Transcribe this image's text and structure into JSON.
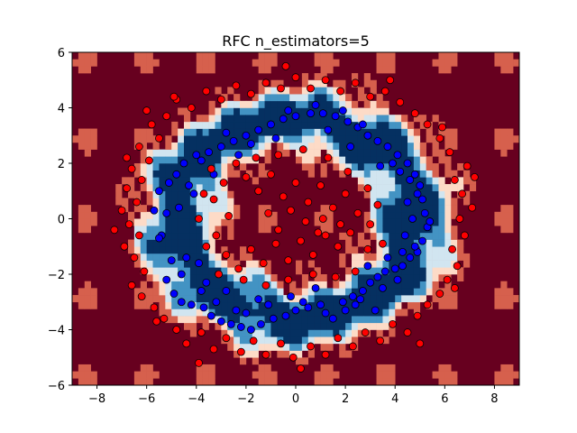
{
  "chart_data": {
    "type": "scatter",
    "title": "RFC n_estimators=5",
    "xlabel": "",
    "ylabel": "",
    "xlim": [
      -9,
      9
    ],
    "ylim": [
      -6,
      6
    ],
    "x_ticks": [
      -8,
      -6,
      -4,
      -2,
      0,
      2,
      4,
      6,
      8
    ],
    "y_ticks": [
      -6,
      -4,
      -2,
      0,
      2,
      4,
      6
    ],
    "grid": false,
    "background": "decision-surface colormap RdBu",
    "colors": {
      "class_red": "#ff0000",
      "class_blue": "#0000ff",
      "dark_red": "#67001f",
      "mid_red": "#d6604d",
      "light_red": "#fddbc7",
      "near_white": "#f7f7f7",
      "light_blue": "#d1e5f0",
      "mid_blue": "#4393c3",
      "dark_blue": "#053061"
    },
    "region_levels": [
      {
        "name": "outer-class",
        "value": 0.0,
        "color": "#67001f"
      },
      {
        "name": "mostly-outer",
        "value": 0.2,
        "color": "#d6604d"
      },
      {
        "name": "mixed-outer",
        "value": 0.4,
        "color": "#fddbc7"
      },
      {
        "name": "mixed-inner",
        "value": 0.6,
        "color": "#d1e5f0"
      },
      {
        "name": "mostly-inner",
        "value": 0.8,
        "color": "#4393c3"
      },
      {
        "name": "inner-class",
        "value": 1.0,
        "color": "#053061"
      }
    ],
    "series": [
      {
        "color": "#0000ff",
        "points": [
          [
            -5.5,
            1.0
          ],
          [
            -5.2,
            0.2
          ],
          [
            -5.4,
            -0.6
          ],
          [
            -5.0,
            -1.5
          ],
          [
            -5.2,
            -2.2
          ],
          [
            -4.9,
            -2.7
          ],
          [
            -4.6,
            -3.0
          ],
          [
            -4.2,
            -3.1
          ],
          [
            -3.7,
            -3.2
          ],
          [
            -3.4,
            -3.5
          ],
          [
            -3.0,
            -3.7
          ],
          [
            -2.6,
            -3.8
          ],
          [
            -2.2,
            -3.9
          ],
          [
            -1.8,
            -4.0
          ],
          [
            -1.4,
            -3.8
          ],
          [
            -0.9,
            -3.6
          ],
          [
            -0.4,
            -3.5
          ],
          [
            0.0,
            -3.3
          ],
          [
            0.5,
            -3.2
          ],
          [
            1.0,
            -3.1
          ],
          [
            1.5,
            -3.6
          ],
          [
            2.0,
            -3.3
          ],
          [
            2.4,
            -3.1
          ],
          [
            2.7,
            -2.6
          ],
          [
            3.0,
            -2.3
          ],
          [
            3.3,
            -2.1
          ],
          [
            3.6,
            -1.9
          ],
          [
            4.0,
            -1.8
          ],
          [
            4.3,
            -1.7
          ],
          [
            4.6,
            -1.4
          ],
          [
            4.9,
            -1.2
          ],
          [
            5.1,
            -0.8
          ],
          [
            5.3,
            -0.3
          ],
          [
            5.2,
            0.2
          ],
          [
            5.1,
            0.7
          ],
          [
            5.0,
            1.2
          ],
          [
            4.8,
            1.6
          ],
          [
            4.5,
            2.0
          ],
          [
            4.1,
            2.3
          ],
          [
            3.7,
            2.6
          ],
          [
            3.3,
            2.8
          ],
          [
            2.9,
            3.0
          ],
          [
            2.5,
            3.3
          ],
          [
            2.1,
            3.5
          ],
          [
            1.6,
            3.7
          ],
          [
            1.1,
            3.8
          ],
          [
            0.6,
            3.8
          ],
          [
            0.0,
            3.7
          ],
          [
            -0.5,
            3.6
          ],
          [
            -1.0,
            3.4
          ],
          [
            -1.5,
            3.2
          ],
          [
            -2.0,
            3.0
          ],
          [
            -2.5,
            2.8
          ],
          [
            -3.0,
            2.6
          ],
          [
            -3.5,
            2.4
          ],
          [
            -4.0,
            2.3
          ],
          [
            -4.5,
            2.0
          ],
          [
            -4.8,
            1.6
          ],
          [
            -5.1,
            1.3
          ],
          [
            -4.6,
            -2.0
          ],
          [
            -3.8,
            -2.6
          ],
          [
            -3.2,
            -3.0
          ],
          [
            -2.0,
            -3.4
          ],
          [
            -1.1,
            -3.1
          ],
          [
            0.3,
            -3.0
          ],
          [
            1.2,
            -3.4
          ],
          [
            2.3,
            -2.8
          ],
          [
            3.5,
            -2.5
          ],
          [
            4.1,
            -2.2
          ],
          [
            4.8,
            -1.0
          ],
          [
            4.7,
            0.0
          ],
          [
            4.9,
            0.9
          ],
          [
            4.2,
            1.7
          ],
          [
            3.9,
            2.0
          ],
          [
            2.7,
            3.4
          ],
          [
            1.9,
            3.9
          ],
          [
            0.8,
            4.1
          ],
          [
            -0.3,
            3.9
          ],
          [
            -1.8,
            2.7
          ],
          [
            -2.8,
            3.1
          ],
          [
            -3.8,
            2.1
          ],
          [
            -4.3,
            1.2
          ],
          [
            -4.7,
            0.4
          ],
          [
            -5.5,
            -0.7
          ],
          [
            -4.4,
            -1.4
          ],
          [
            -5.7,
            0.3
          ],
          [
            -3.9,
            -1.6
          ],
          [
            -2.4,
            -3.3
          ],
          [
            -1.5,
            -2.9
          ],
          [
            0.8,
            -2.5
          ],
          [
            1.9,
            -3.0
          ],
          [
            2.9,
            -1.7
          ],
          [
            3.7,
            -1.4
          ],
          [
            4.4,
            -0.6
          ],
          [
            4.5,
            0.6
          ],
          [
            3.4,
            1.9
          ],
          [
            2.2,
            2.6
          ],
          [
            1.3,
            3.2
          ],
          [
            -0.8,
            2.9
          ],
          [
            -2.3,
            2.3
          ],
          [
            -3.3,
            1.6
          ],
          [
            -4.1,
            0.9
          ],
          [
            -3.6,
            -2.3
          ],
          [
            -2.8,
            -2.6
          ],
          [
            -0.2,
            -2.8
          ],
          [
            2.6,
            -2.9
          ],
          [
            3.2,
            -3.3
          ],
          [
            4.3,
            -1.2
          ],
          [
            5.4,
            -0.1
          ],
          [
            4.6,
            1.4
          ]
        ]
      },
      {
        "color": "#ff0000",
        "points": [
          [
            -6.0,
            3.9
          ],
          [
            -5.8,
            3.4
          ],
          [
            -5.5,
            2.9
          ],
          [
            -6.3,
            2.6
          ],
          [
            -5.9,
            2.1
          ],
          [
            -6.6,
            1.8
          ],
          [
            -6.2,
            1.4
          ],
          [
            -6.8,
            1.1
          ],
          [
            -6.4,
            0.6
          ],
          [
            -7.0,
            0.3
          ],
          [
            -6.7,
            -0.2
          ],
          [
            -6.3,
            -0.6
          ],
          [
            -6.9,
            -1.0
          ],
          [
            -6.5,
            -1.4
          ],
          [
            -6.1,
            -1.9
          ],
          [
            -6.6,
            -2.4
          ],
          [
            -6.2,
            -2.8
          ],
          [
            -5.7,
            -3.2
          ],
          [
            -5.3,
            -3.6
          ],
          [
            -4.8,
            -4.0
          ],
          [
            -4.4,
            -4.5
          ],
          [
            -3.8,
            -4.1
          ],
          [
            -3.3,
            -4.7
          ],
          [
            -2.8,
            -4.3
          ],
          [
            -2.2,
            -4.8
          ],
          [
            -1.7,
            -4.4
          ],
          [
            -1.2,
            -4.9
          ],
          [
            -0.6,
            -4.5
          ],
          [
            -0.1,
            -5.0
          ],
          [
            0.6,
            -4.6
          ],
          [
            1.2,
            -4.9
          ],
          [
            1.7,
            -4.3
          ],
          [
            2.3,
            -4.6
          ],
          [
            2.8,
            -4.1
          ],
          [
            3.4,
            -4.4
          ],
          [
            3.9,
            -3.8
          ],
          [
            4.5,
            -4.1
          ],
          [
            4.9,
            -3.5
          ],
          [
            5.3,
            -3.1
          ],
          [
            5.8,
            -2.7
          ],
          [
            6.1,
            -2.2
          ],
          [
            6.5,
            -1.7
          ],
          [
            6.3,
            -1.1
          ],
          [
            6.8,
            -0.6
          ],
          [
            6.6,
            0.0
          ],
          [
            7.1,
            0.4
          ],
          [
            6.7,
            0.9
          ],
          [
            6.4,
            1.4
          ],
          [
            6.9,
            1.9
          ],
          [
            6.2,
            2.4
          ],
          [
            5.8,
            2.9
          ],
          [
            5.3,
            3.4
          ],
          [
            4.8,
            3.8
          ],
          [
            4.2,
            4.2
          ],
          [
            3.6,
            4.6
          ],
          [
            3.0,
            4.4
          ],
          [
            2.4,
            4.9
          ],
          [
            1.8,
            4.6
          ],
          [
            1.2,
            5.0
          ],
          [
            0.6,
            4.7
          ],
          [
            0.0,
            5.1
          ],
          [
            -0.6,
            4.7
          ],
          [
            -1.2,
            4.9
          ],
          [
            -1.8,
            4.5
          ],
          [
            -2.4,
            4.8
          ],
          [
            -3.0,
            4.3
          ],
          [
            -3.6,
            4.6
          ],
          [
            -4.2,
            4.0
          ],
          [
            -4.8,
            4.3
          ],
          [
            -5.2,
            3.7
          ],
          [
            -2.0,
            1.5
          ],
          [
            -1.5,
            1.0
          ],
          [
            -1.0,
            1.6
          ],
          [
            -0.5,
            0.8
          ],
          [
            0.0,
            1.3
          ],
          [
            0.5,
            0.6
          ],
          [
            1.0,
            1.2
          ],
          [
            1.5,
            0.4
          ],
          [
            2.0,
            0.9
          ],
          [
            2.5,
            0.2
          ],
          [
            2.2,
            -0.5
          ],
          [
            1.7,
            -1.0
          ],
          [
            1.2,
            -0.6
          ],
          [
            0.7,
            -1.3
          ],
          [
            0.2,
            -0.8
          ],
          [
            -0.3,
            -1.5
          ],
          [
            -0.8,
            -0.9
          ],
          [
            -1.3,
            -1.6
          ],
          [
            -1.8,
            -1.1
          ],
          [
            -2.3,
            -1.8
          ],
          [
            -2.8,
            -1.3
          ],
          [
            -3.2,
            -0.6
          ],
          [
            -2.7,
            0.1
          ],
          [
            -3.3,
            0.7
          ],
          [
            -2.9,
            1.3
          ],
          [
            -2.4,
            2.0
          ],
          [
            -1.6,
            2.2
          ],
          [
            -0.7,
            2.3
          ],
          [
            0.3,
            2.5
          ],
          [
            1.3,
            2.2
          ],
          [
            2.1,
            1.7
          ],
          [
            2.9,
            1.1
          ],
          [
            3.3,
            0.5
          ],
          [
            3.0,
            -0.2
          ],
          [
            3.5,
            -0.9
          ],
          [
            2.9,
            -1.1
          ],
          [
            2.4,
            -1.9
          ],
          [
            1.6,
            -2.1
          ],
          [
            0.7,
            -2.0
          ],
          [
            -0.3,
            -2.2
          ],
          [
            -1.2,
            -2.4
          ],
          [
            -2.1,
            -2.2
          ],
          [
            -3.1,
            -2.0
          ],
          [
            -3.6,
            -1.0
          ],
          [
            -3.9,
            0.0
          ],
          [
            -3.7,
            0.9
          ],
          [
            -3.4,
            1.8
          ],
          [
            -1.1,
            0.2
          ],
          [
            0.4,
            -0.1
          ],
          [
            1.8,
            -0.2
          ],
          [
            -0.2,
            0.3
          ],
          [
            1.1,
            0.0
          ],
          [
            -0.7,
            -0.4
          ],
          [
            0.9,
            -0.5
          ],
          [
            7.2,
            1.5
          ],
          [
            -7.3,
            -0.4
          ],
          [
            5.0,
            -4.5
          ],
          [
            -4.9,
            4.4
          ],
          [
            5.9,
            3.3
          ],
          [
            -5.6,
            -3.7
          ],
          [
            0.2,
            -5.4
          ],
          [
            -0.4,
            5.5
          ],
          [
            3.8,
            5.0
          ],
          [
            -3.9,
            -5.2
          ],
          [
            6.4,
            -2.5
          ],
          [
            -6.8,
            2.2
          ]
        ]
      }
    ]
  }
}
